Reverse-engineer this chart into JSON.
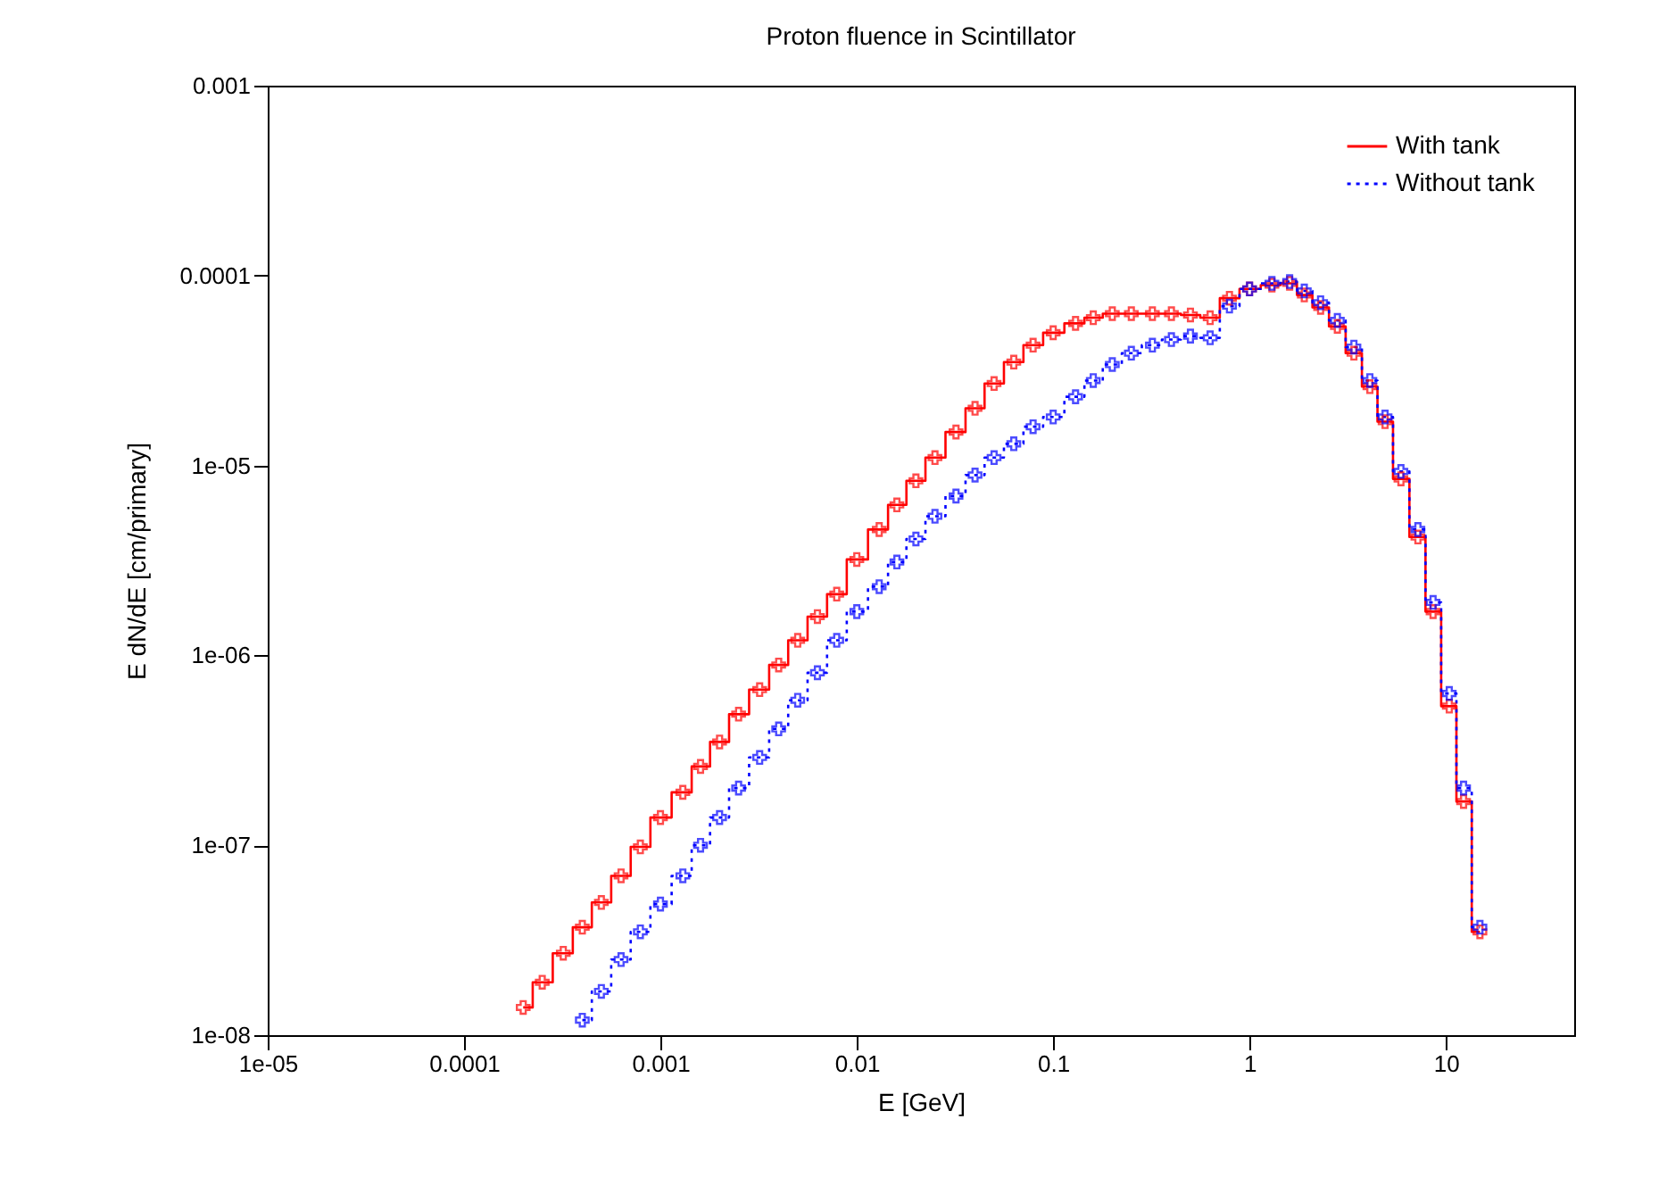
{
  "chart_data": {
    "type": "step",
    "title": "Proton fluence in Scintillator",
    "xlabel": "E [GeV]",
    "ylabel": "E dN/dE [cm/primary]",
    "log": "xy",
    "grid": false,
    "legend": "top right",
    "marker": "cross",
    "xlim": [
      1e-05,
      45
    ],
    "ylim": [
      1e-08,
      0.001
    ],
    "xticks": [
      {
        "value": 1e-05,
        "label": "1e-05"
      },
      0.0001,
      0.001,
      0.01,
      0.1,
      1,
      10
    ],
    "yticks": [
      {
        "value": 1e-08,
        "label": "1e-08"
      },
      {
        "value": 1e-07,
        "label": "1e-07"
      },
      {
        "value": 1e-06,
        "label": "1e-06"
      },
      {
        "value": 1e-05,
        "label": "1e-05"
      },
      0.0001,
      0.001
    ],
    "series": [
      {
        "name": "With tank",
        "color": "#ff0000",
        "line_style": "solid",
        "x": [
          0.0002,
          0.00025,
          0.00032,
          0.0004,
          0.0005,
          0.00063,
          0.00079,
          0.001,
          0.0013,
          0.0016,
          0.002,
          0.0025,
          0.0032,
          0.004,
          0.005,
          0.0063,
          0.0079,
          0.01,
          0.013,
          0.016,
          0.02,
          0.025,
          0.032,
          0.04,
          0.05,
          0.063,
          0.079,
          0.1,
          0.13,
          0.16,
          0.2,
          0.25,
          0.32,
          0.4,
          0.5,
          0.63,
          0.79,
          1,
          1.3,
          1.6,
          1.9,
          2.3,
          2.8,
          3.4,
          4.1,
          4.9,
          5.9,
          7.2,
          8.6,
          10.4,
          12.3,
          14.9
        ],
        "values": [
          1.4e-08,
          1.9e-08,
          2.7e-08,
          3.7e-08,
          5e-08,
          6.9e-08,
          9.8e-08,
          1.4e-07,
          1.9e-07,
          2.6e-07,
          3.5e-07,
          4.9e-07,
          6.6e-07,
          8.9e-07,
          1.2e-06,
          1.6e-06,
          2.1e-06,
          3.2e-06,
          4.6e-06,
          6.2e-06,
          8.3e-06,
          1.1e-05,
          1.5e-05,
          2e-05,
          2.7e-05,
          3.5e-05,
          4.3e-05,
          5e-05,
          5.6e-05,
          6e-05,
          6.3e-05,
          6.3e-05,
          6.3e-05,
          6.3e-05,
          6.2e-05,
          6e-05,
          7.6e-05,
          8.5e-05,
          8.9e-05,
          9.1e-05,
          7.9e-05,
          6.8e-05,
          5.4e-05,
          3.9e-05,
          2.6e-05,
          1.7e-05,
          8.5e-06,
          4.2e-06,
          1.7e-06,
          5.4e-07,
          1.7e-07,
          3.5e-08
        ]
      },
      {
        "name": "Without tank",
        "color": "#0000ff",
        "line_style": "dotted",
        "x": [
          0.0004,
          0.0005,
          0.00063,
          0.00079,
          0.001,
          0.0013,
          0.0016,
          0.002,
          0.0025,
          0.0032,
          0.004,
          0.005,
          0.0063,
          0.0079,
          0.01,
          0.013,
          0.016,
          0.02,
          0.025,
          0.032,
          0.04,
          0.05,
          0.063,
          0.079,
          0.1,
          0.13,
          0.16,
          0.2,
          0.25,
          0.32,
          0.4,
          0.5,
          0.63,
          0.79,
          1,
          1.3,
          1.6,
          1.9,
          2.3,
          2.8,
          3.4,
          4.1,
          4.9,
          5.9,
          7.2,
          8.6,
          10.4,
          12.3,
          14.9
        ],
        "values": [
          1.2e-08,
          1.7e-08,
          2.5e-08,
          3.5e-08,
          4.9e-08,
          6.9e-08,
          1e-07,
          1.4e-07,
          2e-07,
          2.9e-07,
          4.1e-07,
          5.8e-07,
          8.1e-07,
          1.2e-06,
          1.7e-06,
          2.3e-06,
          3.1e-06,
          4.1e-06,
          5.4e-06,
          6.9e-06,
          8.9e-06,
          1.1e-05,
          1.3e-05,
          1.6e-05,
          1.8e-05,
          2.3e-05,
          2.8e-05,
          3.4e-05,
          3.9e-05,
          4.3e-05,
          4.6e-05,
          4.8e-05,
          4.7e-05,
          6.9e-05,
          8.5e-05,
          9.1e-05,
          9.3e-05,
          8.3e-05,
          7.2e-05,
          5.8e-05,
          4.2e-05,
          2.8e-05,
          1.8e-05,
          9.3e-06,
          4.6e-06,
          1.9e-06,
          6.3e-07,
          2e-07,
          3.7e-08
        ]
      }
    ]
  }
}
